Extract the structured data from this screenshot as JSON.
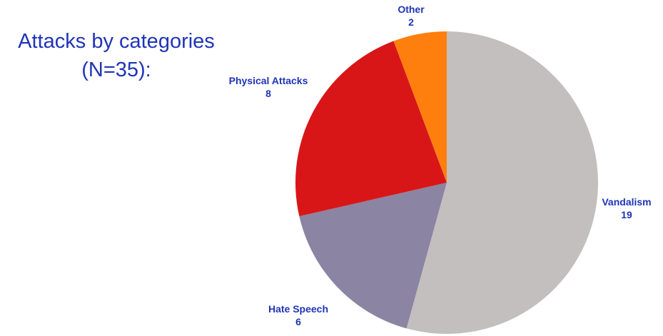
{
  "chart_data": {
    "type": "pie",
    "title": "Attacks by categories",
    "subtitle": "(N=35):",
    "categories": [
      "Vandalism",
      "Hate Speech",
      "Physical Attacks",
      "Other"
    ],
    "values": [
      19,
      6,
      8,
      2
    ],
    "colors": [
      "#c3bfbf",
      "#8b84a2",
      "#d81617",
      "#ff7f0e"
    ],
    "label_color": "#1f34b7",
    "start": "12 o'clock",
    "direction": "clockwise",
    "legend": "none"
  }
}
